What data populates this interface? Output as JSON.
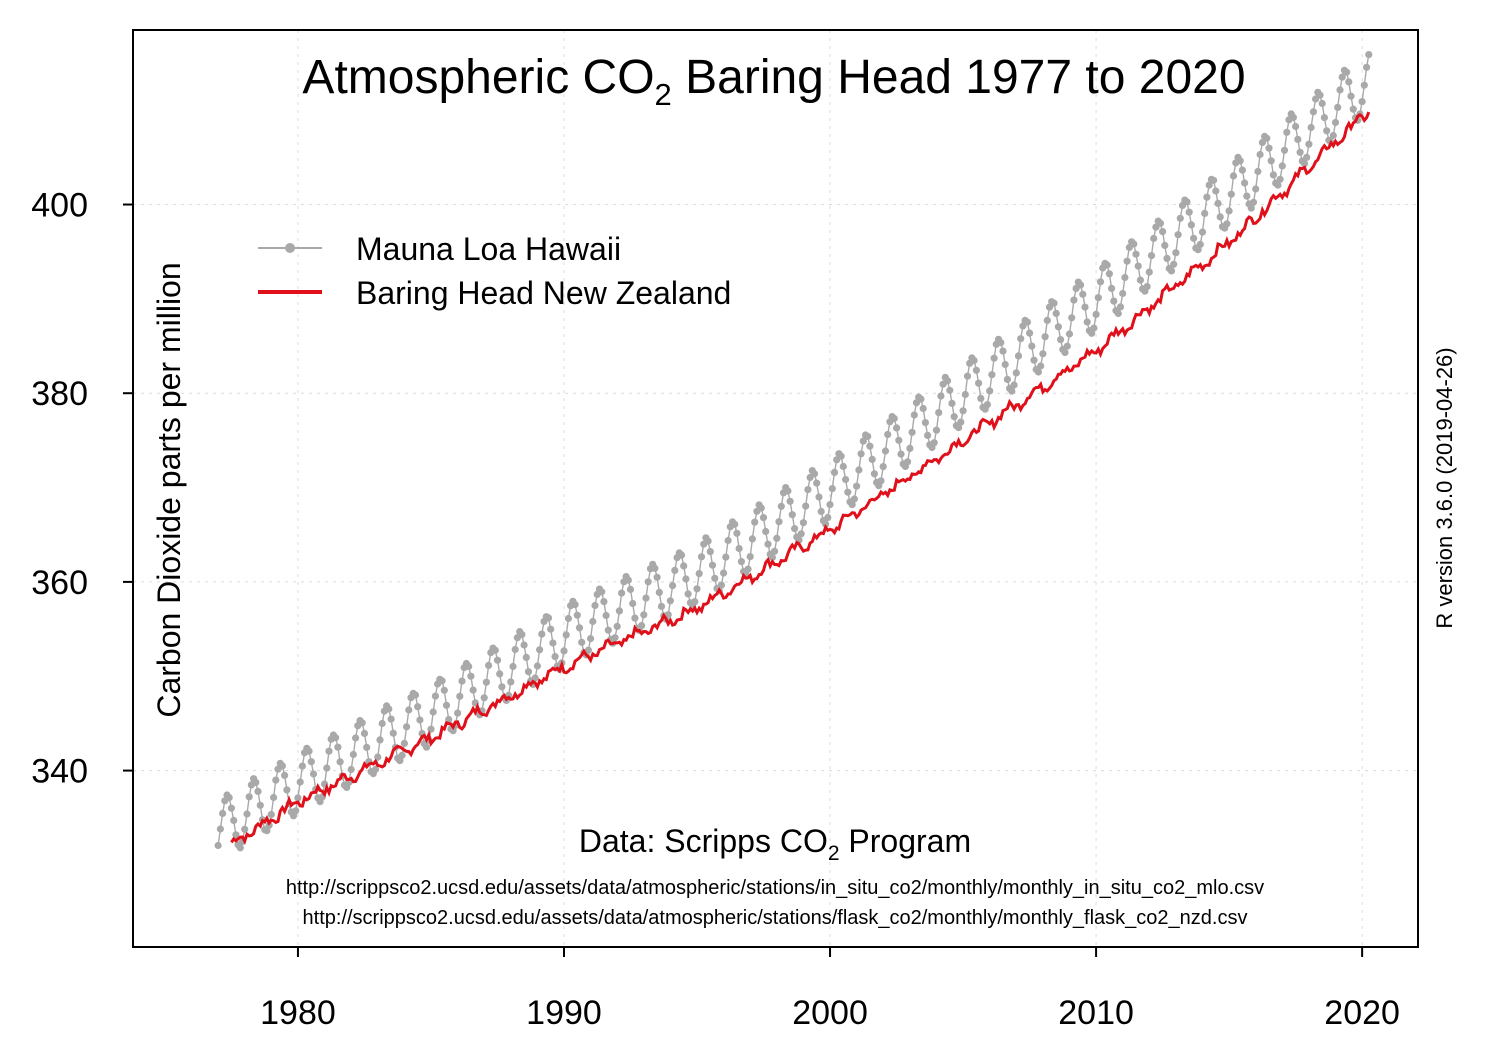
{
  "chart_data": {
    "type": "line",
    "title_prefix": "Atmospheric CO",
    "title_sub": "2",
    "title_suffix": " Baring Head 1977 to 2020",
    "ylabel": "Carbon Dioxide parts per million",
    "side_label": "R version 3.6.0 (2019-04-26)",
    "credit_prefix": "Data: Scripps CO",
    "credit_sub": "2",
    "credit_suffix": " Program",
    "source_urls": [
      "http://scrippsco2.ucsd.edu/assets/data/atmospheric/stations/in_situ_co2/monthly/monthly_in_situ_co2_mlo.csv",
      "http://scrippsco2.ucsd.edu/assets/data/atmospheric/stations/flask_co2/monthly/monthly_flask_co2_nzd.csv"
    ],
    "xlim": [
      1973.8,
      2022.1
    ],
    "ylim": [
      321.3,
      418.5
    ],
    "x_ticks": [
      1980,
      1990,
      2000,
      2010,
      2020
    ],
    "y_ticks": [
      340,
      360,
      380,
      400
    ],
    "grid": true,
    "legend_position": "top-left",
    "series": [
      {
        "name": "Mauna Loa Hawaii",
        "color": "#a9a9a9",
        "style": "line-with-points",
        "x_range": [
          1977.0,
          2020.3
        ],
        "yearly_mean_points": [
          {
            "x": 1977.5,
            "y": 334.5
          },
          {
            "x": 1980.0,
            "y": 338.7
          },
          {
            "x": 1985.0,
            "y": 346.0
          },
          {
            "x": 1990.0,
            "y": 354.3
          },
          {
            "x": 1995.0,
            "y": 360.8
          },
          {
            "x": 2000.0,
            "y": 369.7
          },
          {
            "x": 2005.0,
            "y": 379.8
          },
          {
            "x": 2010.0,
            "y": 389.9
          },
          {
            "x": 2015.0,
            "y": 401.0
          },
          {
            "x": 2020.0,
            "y": 412.5
          }
        ],
        "seasonal_amplitude": 3.2,
        "seasonal_peak_month": 5
      },
      {
        "name": "Baring Head New Zealand",
        "color": "#e0101a",
        "style": "line",
        "x_range": [
          1977.5,
          2020.3
        ],
        "yearly_mean_points": [
          {
            "x": 1977.5,
            "y": 332.2
          },
          {
            "x": 1980.0,
            "y": 336.7
          },
          {
            "x": 1985.0,
            "y": 343.5
          },
          {
            "x": 1990.0,
            "y": 351.0
          },
          {
            "x": 1995.0,
            "y": 357.2
          },
          {
            "x": 2000.0,
            "y": 365.5
          },
          {
            "x": 2005.0,
            "y": 375.0
          },
          {
            "x": 2010.0,
            "y": 384.5
          },
          {
            "x": 2015.0,
            "y": 396.0
          },
          {
            "x": 2020.0,
            "y": 409.3
          }
        ],
        "seasonal_amplitude": 0.4,
        "seasonal_peak_month": 9
      }
    ]
  }
}
